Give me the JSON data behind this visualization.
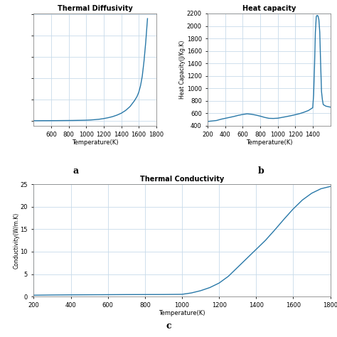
{
  "title_a": "Thermal Diffusivity",
  "title_b": "Heat capacity",
  "title_c": "Thermal Conductivity",
  "xlabel": "Temperature(K)",
  "ylabel_b": "Heat Capacity(J/Kg.K)",
  "ylabel_c": "Conductivity(W/m.K)",
  "label_a": "a",
  "label_b": "b",
  "label_c": "c",
  "line_color": "#2878a8",
  "background_color": "#ffffff",
  "grid_color": "#c8daea",
  "td_T": [
    400,
    450,
    500,
    550,
    600,
    650,
    700,
    750,
    800,
    850,
    900,
    950,
    1000,
    1050,
    1100,
    1150,
    1200,
    1250,
    1300,
    1350,
    1400,
    1450,
    1500,
    1550,
    1580,
    1600,
    1620,
    1640,
    1660,
    1680,
    1700
  ],
  "td_V": [
    0.02,
    0.02,
    0.022,
    0.022,
    0.023,
    0.024,
    0.026,
    0.028,
    0.03,
    0.032,
    0.036,
    0.04,
    0.045,
    0.055,
    0.07,
    0.09,
    0.12,
    0.16,
    0.21,
    0.28,
    0.37,
    0.5,
    0.68,
    0.95,
    1.15,
    1.35,
    1.65,
    2.1,
    2.8,
    3.7,
    4.8
  ],
  "td_xlim": [
    400,
    1800
  ],
  "td_xticks": [
    600,
    800,
    1000,
    1200,
    1400,
    1600,
    1800
  ],
  "hc_T": [
    200,
    300,
    350,
    400,
    450,
    500,
    550,
    600,
    650,
    700,
    750,
    800,
    850,
    900,
    950,
    1000,
    1050,
    1100,
    1150,
    1200,
    1250,
    1300,
    1350,
    1400,
    1410,
    1420,
    1430,
    1440,
    1450,
    1460,
    1470,
    1480,
    1490,
    1500,
    1510,
    1520,
    1550,
    1600
  ],
  "hc_V": [
    470,
    485,
    505,
    520,
    535,
    550,
    568,
    582,
    592,
    585,
    572,
    555,
    535,
    520,
    518,
    522,
    535,
    548,
    562,
    578,
    595,
    618,
    645,
    690,
    900,
    1350,
    1900,
    2150,
    2170,
    2160,
    2100,
    1900,
    1400,
    950,
    820,
    740,
    715,
    700
  ],
  "hc_xlim": [
    200,
    1600
  ],
  "hc_ylim": [
    400,
    2200
  ],
  "hc_yticks": [
    400,
    600,
    800,
    1000,
    1200,
    1400,
    1600,
    1800,
    2000,
    2200
  ],
  "hc_xticks": [
    200,
    400,
    600,
    800,
    1000,
    1200,
    1400
  ],
  "tc_T": [
    200,
    300,
    400,
    500,
    600,
    700,
    800,
    900,
    1000,
    1050,
    1100,
    1150,
    1200,
    1250,
    1300,
    1350,
    1400,
    1450,
    1500,
    1550,
    1600,
    1650,
    1700,
    1750,
    1800
  ],
  "tc_V": [
    0.3,
    0.35,
    0.38,
    0.4,
    0.42,
    0.44,
    0.45,
    0.46,
    0.5,
    0.8,
    1.3,
    2.0,
    3.0,
    4.5,
    6.5,
    8.5,
    10.5,
    12.5,
    14.8,
    17.2,
    19.5,
    21.5,
    23.0,
    24.0,
    24.5
  ],
  "tc_xlim": [
    200,
    1800
  ],
  "tc_ylim": [
    0,
    25
  ],
  "tc_xticks": [
    200,
    400,
    600,
    800,
    1000,
    1200,
    1400,
    1600,
    1800
  ],
  "tc_yticks": [
    0,
    5,
    10,
    15,
    20,
    25
  ]
}
